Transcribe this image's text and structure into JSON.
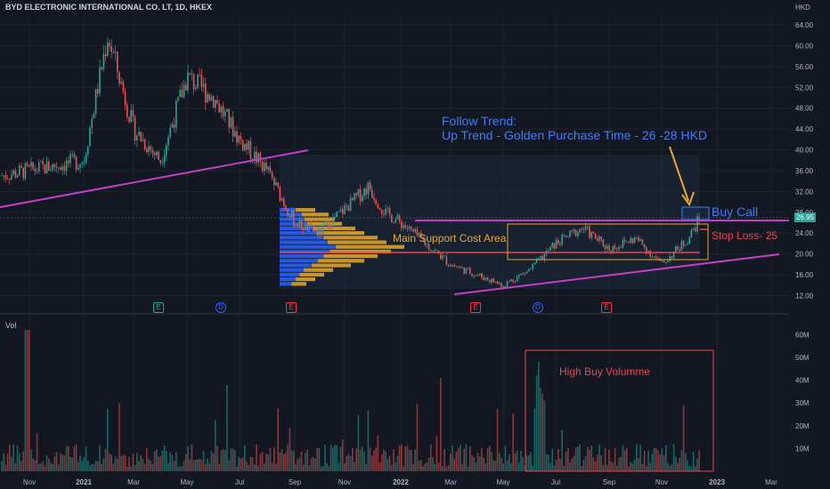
{
  "header": {
    "title": "BYD ELECTRONIC INTERNATIONAL CO. LT, 1D, HKEX"
  },
  "price_axis": {
    "currency": "HKD",
    "last_price": "26.95"
  },
  "volume_pane": {
    "label": "Vol"
  },
  "annotations": {
    "follow_trend": "Follow Trend:",
    "up_trend": "Up Trend - Golden Purchase Time - 26 -28 HKD",
    "buy_call": "Buy Call",
    "stop_loss": "Stop Loss- 25",
    "support": "Main Support Cost Area",
    "high_buy": "High Buy Volumme"
  },
  "events": [
    {
      "id": "ev1",
      "letter": "E",
      "type": "earnings-small"
    },
    {
      "id": "ev2",
      "letter": "D",
      "type": "dividend"
    },
    {
      "id": "ev3",
      "letter": "E",
      "type": "earnings"
    },
    {
      "id": "ev4",
      "letter": "E",
      "type": "earnings"
    },
    {
      "id": "ev5",
      "letter": "D",
      "type": "dividend"
    },
    {
      "id": "ev6",
      "letter": "E",
      "type": "earnings"
    }
  ],
  "colors": {
    "bg": "#131722",
    "up": "#26a69a",
    "down": "#ef5350",
    "trend": "#c33fc8",
    "buy_box": "#3d7ef5",
    "support": "#e9a82c",
    "stop": "#e5484d"
  },
  "chart_data": [
    {
      "type": "candlestick",
      "title": "BYD ELECTRONIC INTERNATIONAL CO. LT, 1D, HKEX",
      "x_ticks": [
        "Nov",
        "2021",
        "Mar",
        "May",
        "Jul",
        "Sep",
        "Nov",
        "2022",
        "Mar",
        "May",
        "Jul",
        "Sep",
        "Nov",
        "2023",
        "Mar"
      ],
      "y_ticks": [
        12,
        16,
        20,
        24,
        28,
        32,
        36,
        40,
        44,
        48,
        52,
        56,
        60,
        64
      ],
      "ylim": [
        10,
        66
      ],
      "unit": "HKD",
      "last_price": 26.95,
      "approx_close_path": [
        {
          "x": "Nov 2020",
          "y": 35
        },
        {
          "x": "2021",
          "y": 38
        },
        {
          "x": "Feb 2021",
          "y": 62
        },
        {
          "x": "Mar 2021",
          "y": 44
        },
        {
          "x": "Apr 2021",
          "y": 38
        },
        {
          "x": "May 2021",
          "y": 54
        },
        {
          "x": "Jun 2021",
          "y": 50
        },
        {
          "x": "Jul 2021",
          "y": 42
        },
        {
          "x": "Aug 2021",
          "y": 36
        },
        {
          "x": "Sep 2021",
          "y": 26
        },
        {
          "x": "Oct 2021",
          "y": 24
        },
        {
          "x": "Nov 2021",
          "y": 33
        },
        {
          "x": "Dec 2021",
          "y": 28
        },
        {
          "x": "2022",
          "y": 26
        },
        {
          "x": "Mar 2022",
          "y": 18
        },
        {
          "x": "Apr 2022",
          "y": 14
        },
        {
          "x": "May 2022",
          "y": 17
        },
        {
          "x": "Jun 2022",
          "y": 22
        },
        {
          "x": "Jul 2022",
          "y": 25
        },
        {
          "x": "Aug 2022",
          "y": 21
        },
        {
          "x": "Sep 2022",
          "y": 23
        },
        {
          "x": "Oct 2022",
          "y": 18
        },
        {
          "x": "Nov 2022",
          "y": 23
        },
        {
          "x": "Dec 2022",
          "y": 26.95
        }
      ],
      "levels": {
        "buy_zone": [
          26,
          28
        ],
        "stop_loss": 25,
        "support_line": 20.2,
        "resistance_line": 26.2
      }
    },
    {
      "type": "bar",
      "title": "Vol",
      "y_ticks": [
        "10M",
        "20M",
        "30M",
        "40M",
        "50M",
        "60M"
      ],
      "ylim": [
        0,
        65
      ],
      "unit": "M"
    }
  ]
}
